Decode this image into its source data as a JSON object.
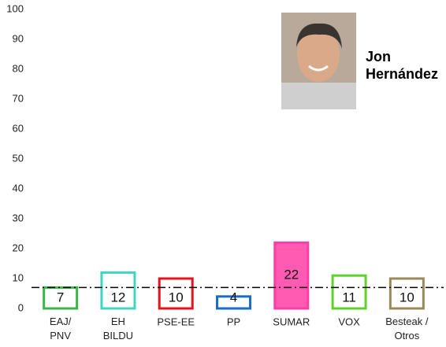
{
  "chart_data": {
    "type": "bar",
    "categories": [
      "EAJ/\nPNV",
      "EH\nBILDU",
      "PSE-EE",
      "PP",
      "SUMAR",
      "VOX",
      "Besteak /\nOtros"
    ],
    "values": [
      7,
      12,
      10,
      4,
      22,
      11,
      10
    ],
    "colors": [
      "#3cb64a",
      "#3dd6c0",
      "#e8121b",
      "#1a6dc6",
      "#ff3ea5",
      "#5ed22b",
      "#9a8a5a"
    ],
    "filled": [
      false,
      false,
      false,
      false,
      true,
      false,
      false
    ],
    "reference_line": 7,
    "ylim": [
      0,
      100
    ],
    "yticks": [
      0,
      10,
      20,
      30,
      40,
      50,
      60,
      70,
      80,
      90,
      100
    ],
    "grid": false,
    "annotation": "Jon\nHernández"
  }
}
